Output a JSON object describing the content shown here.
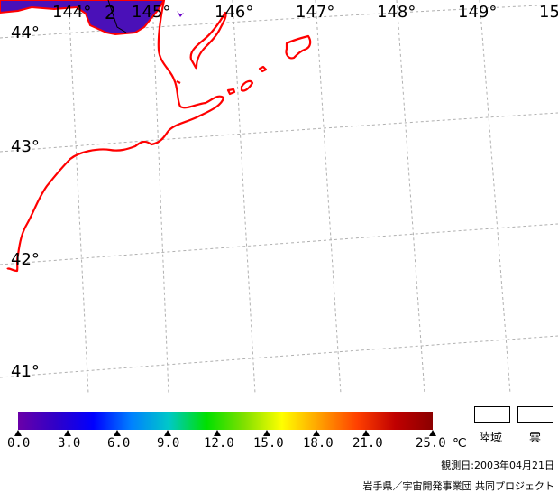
{
  "map": {
    "longitude_labels": [
      "144°",
      "2",
      "145°",
      "146°",
      "147°",
      "148°",
      "149°",
      "15"
    ],
    "latitude_labels": [
      "44°",
      "43°",
      "42°",
      "41°"
    ]
  },
  "legend": {
    "ticks": [
      "0.0",
      "3.0",
      "6.0",
      "9.0",
      "12.0",
      "15.0",
      "18.0",
      "21.0",
      "25.0"
    ],
    "unit": "℃",
    "colors": [
      "#6a00a8",
      "#3000c8",
      "#0000ff",
      "#0080ff",
      "#00c8c8",
      "#00e000",
      "#80e000",
      "#ffff00",
      "#ffa000",
      "#ff4000",
      "#c00000",
      "#8b0000"
    ],
    "land_label": "陸域",
    "cloud_label": "雲"
  },
  "observation": "観測日:2003年04月21日",
  "credit": "岩手県／宇宙開発事業団 共同プロジェクト"
}
